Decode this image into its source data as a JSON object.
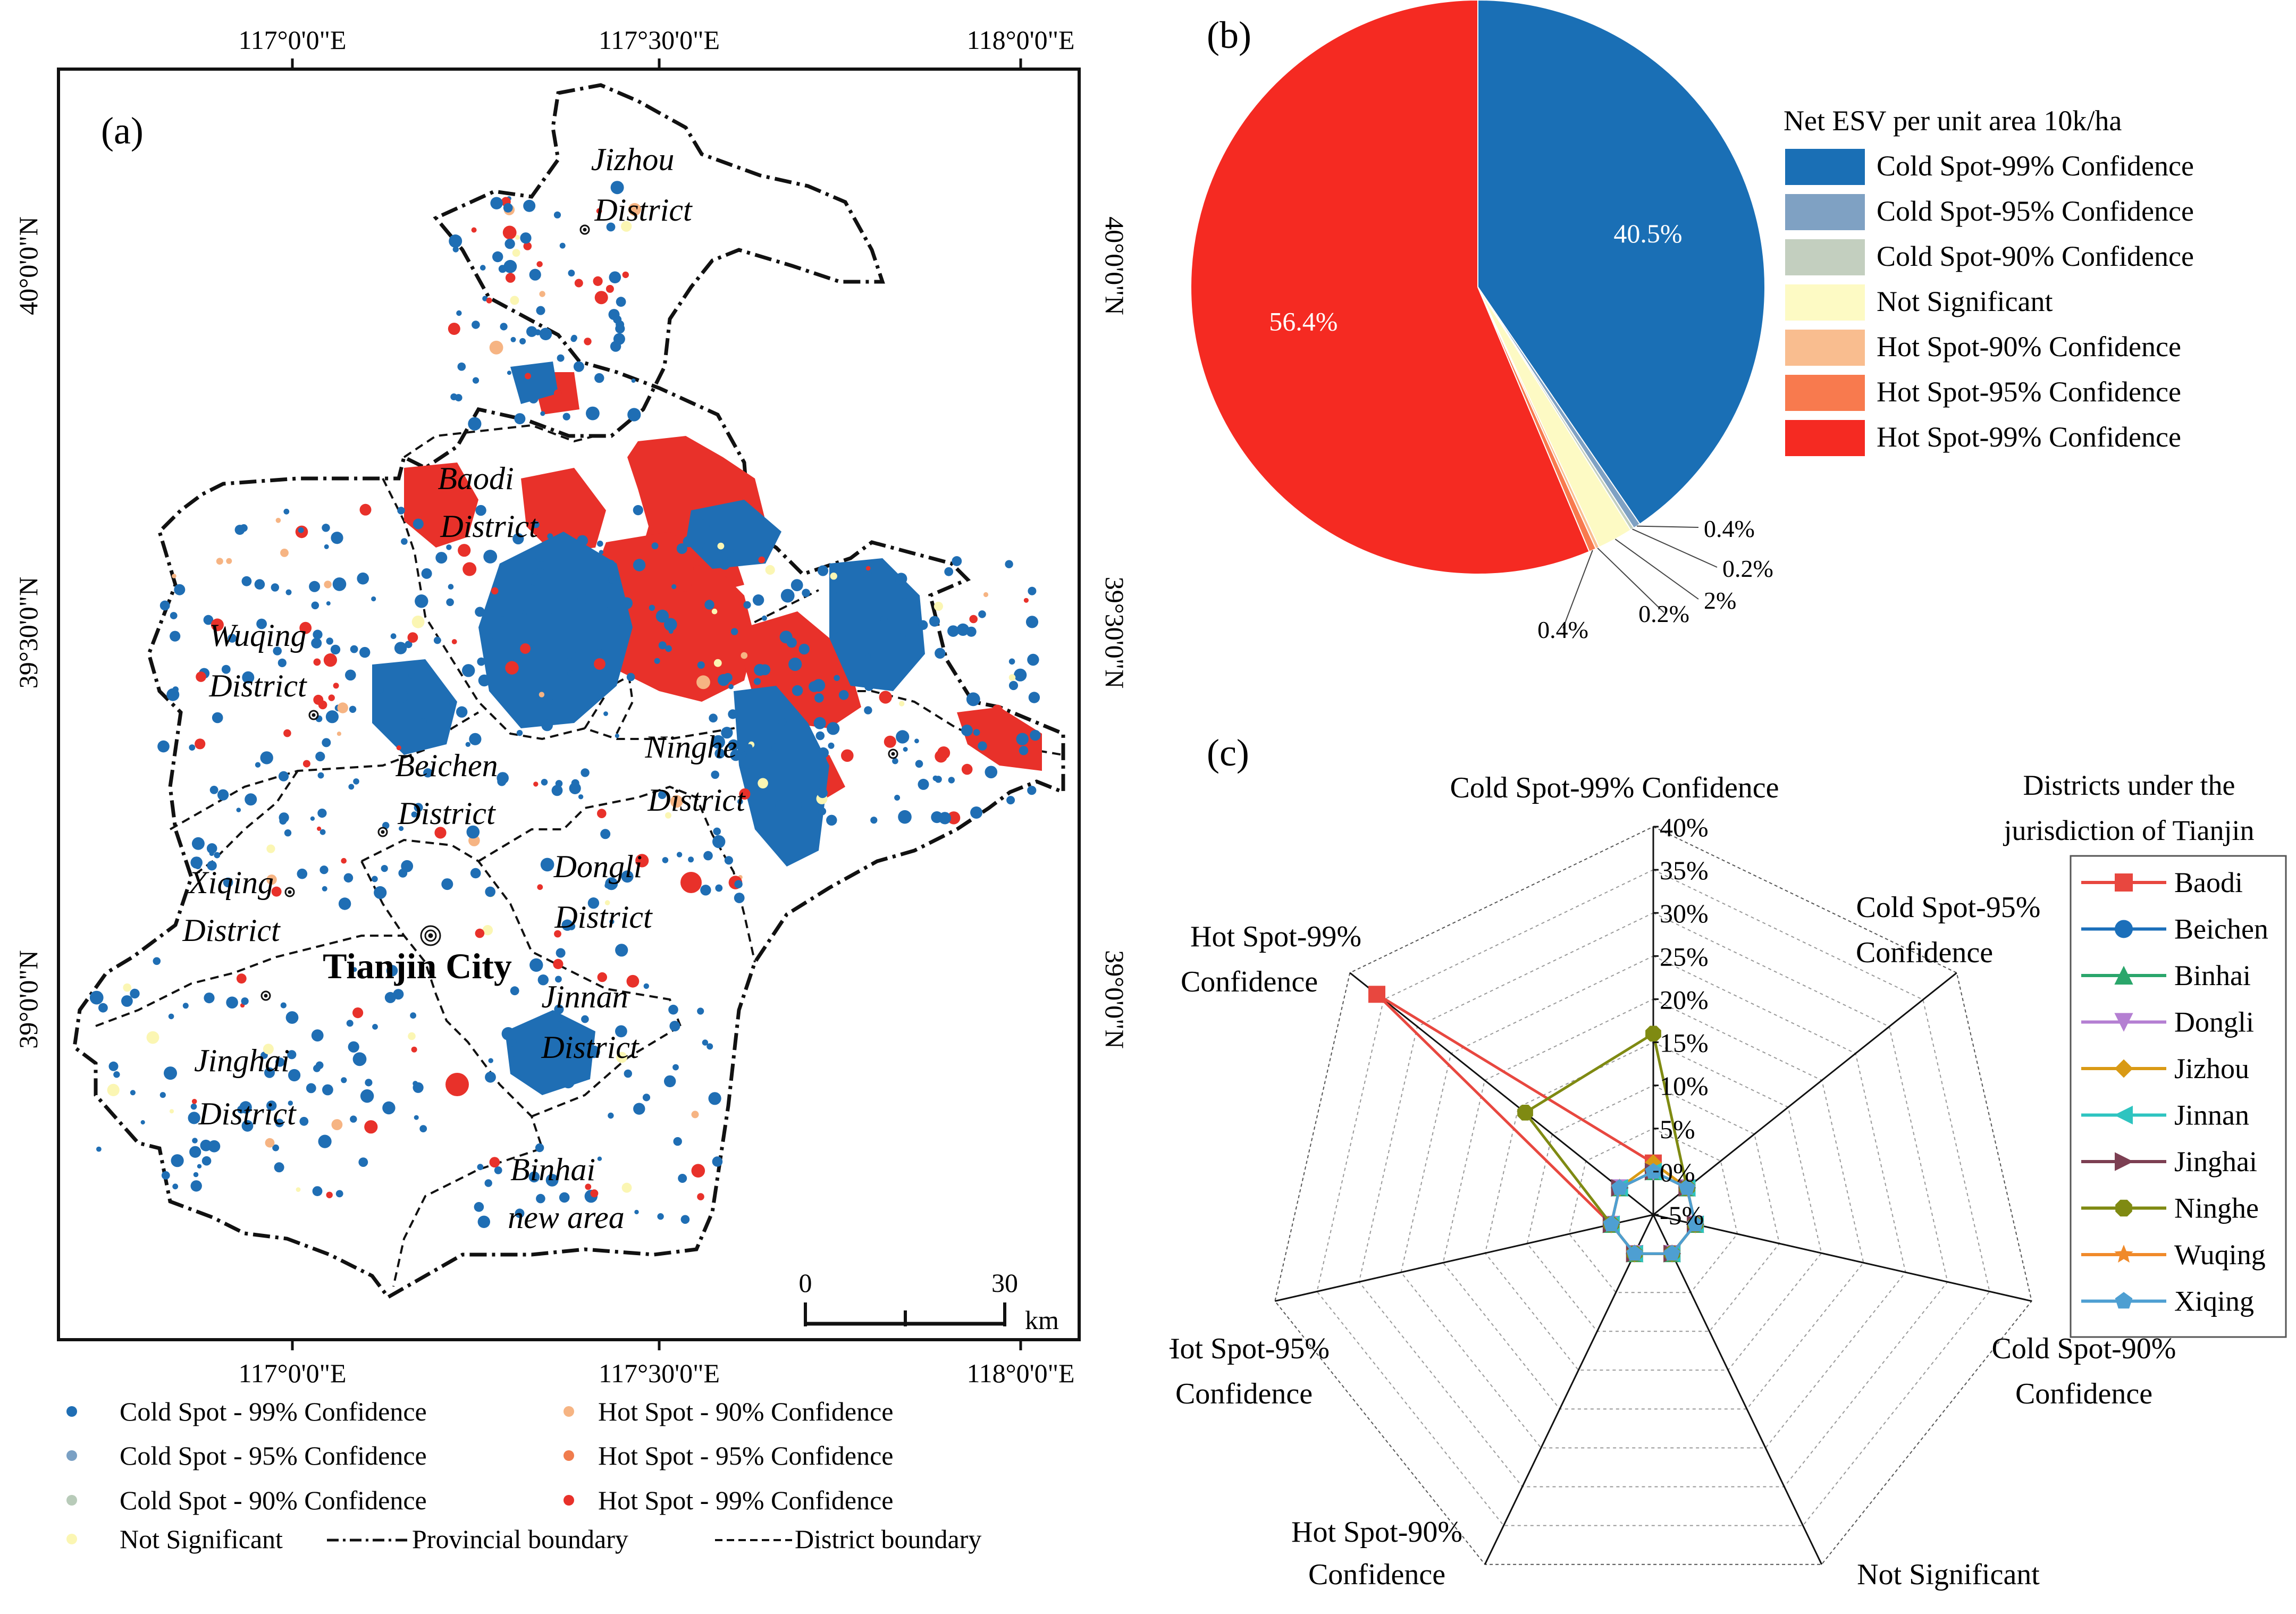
{
  "panel_a": {
    "label": "(a)",
    "top_lon_ticks": [
      "117°0'0\"E",
      "117°30'0\"E",
      "118°0'0\"E"
    ],
    "bottom_lon_ticks": [
      "117°0'0\"E",
      "117°30'0\"E",
      "118°0'0\"E"
    ],
    "lat_ticks": [
      "40°0'0\"N",
      "39°30'0\"N",
      "39°0'0\"N"
    ],
    "districts": [
      {
        "line1": "Jizhou",
        "line2": "District"
      },
      {
        "line1": "Baodi",
        "line2": "District"
      },
      {
        "line1": "Wuqing",
        "line2": "District"
      },
      {
        "line1": "Beichen",
        "line2": "District"
      },
      {
        "line1": "Ninghe",
        "line2": "District"
      },
      {
        "line1": "Xiqing",
        "line2": "District"
      },
      {
        "line1": "Dongli",
        "line2": "District"
      },
      {
        "line1": "Jinnan",
        "line2": "District"
      },
      {
        "line1": "Jinghai",
        "line2": "District"
      },
      {
        "line1": "Binhai",
        "line2": "new area"
      }
    ],
    "city_label": "Tianjin City",
    "scale": {
      "zero": "0",
      "thirty": "30",
      "unit": "km"
    },
    "legend": [
      {
        "label": "Cold Spot - 99% Confidence",
        "color": "#1f6eb4"
      },
      {
        "label": "Hot Spot - 90% Confidence",
        "color": "#f6b483"
      },
      {
        "label": "Cold Spot - 95% Confidence",
        "color": "#7aa0c4"
      },
      {
        "label": "Hot Spot - 95% Confidence",
        "color": "#f07c4d"
      },
      {
        "label": "Cold Spot - 90% Confidence",
        "color": "#b8cbb9"
      },
      {
        "label": "Hot Spot - 99% Confidence",
        "color": "#e8312a"
      },
      {
        "label": "Not Significant",
        "color": "#fbf6b3"
      },
      {
        "label": "Provincial boundary",
        "color": "#111111"
      },
      {
        "label": "District  boundary",
        "color": "#111111"
      }
    ]
  },
  "panel_b": {
    "label": "(b)",
    "legend_title": "Net ESV per unit area  10k/ha",
    "legend": [
      {
        "label": "Cold Spot-99% Confidence",
        "color": "#1a6fb5"
      },
      {
        "label": "Cold Spot-95% Confidence",
        "color": "#7fa1c3"
      },
      {
        "label": "Cold Spot-90% Confidence",
        "color": "#c3cfbf"
      },
      {
        "label": "Not Significant",
        "color": "#fdfac4"
      },
      {
        "label": "Hot Spot-90% Confidence",
        "color": "#f9bd8f"
      },
      {
        "label": "Hot Spot-95% Confidence",
        "color": "#f87a4e"
      },
      {
        "label": "Hot Spot-99% Confidence",
        "color": "#f52a22"
      }
    ]
  },
  "panel_c": {
    "label": "(c)",
    "legend_title_line1": "Districts under the",
    "legend_title_line2": "jurisdiction of Tianjin",
    "axes": [
      {
        "line1": "Cold Spot-99% Confidence",
        "line2": ""
      },
      {
        "line1": "Cold Spot-95%",
        "line2": "Confidence"
      },
      {
        "line1": "Cold Spot-90%",
        "line2": "Confidence"
      },
      {
        "line1": "Not Significant",
        "line2": ""
      },
      {
        "line1": "Hot Spot-90%",
        "line2": "Confidence"
      },
      {
        "line1": "Hot Spot-95%",
        "line2": "Confidence"
      },
      {
        "line1": "Hot Spot-99%",
        "line2": "Confidence"
      }
    ],
    "scale_ticks": [
      "-5%",
      "0%",
      "5%",
      "10%",
      "15%",
      "20%",
      "25%",
      "30%",
      "35%",
      "40%"
    ]
  },
  "chart_data": [
    {
      "type": "pie",
      "title": "Net ESV per unit area  10k/ha",
      "categories": [
        "Cold Spot-99% Confidence",
        "Cold Spot-95% Confidence",
        "Cold Spot-90% Confidence",
        "Not Significant",
        "Hot Spot-90% Confidence",
        "Hot Spot-95% Confidence",
        "Hot Spot-99% Confidence"
      ],
      "values": [
        40.5,
        0.4,
        0.2,
        2,
        0.2,
        0.4,
        56.4
      ],
      "value_labels": [
        "40.5%",
        "0.4%",
        "0.2%",
        "2%",
        "0.2%",
        "0.4%",
        "56.4%"
      ]
    },
    {
      "type": "radar",
      "axes": [
        "Cold Spot-99% Confidence",
        "Cold Spot-95% Confidence",
        "Cold Spot-90% Confidence",
        "Not Significant",
        "Hot Spot-90% Confidence",
        "Hot Spot-95% Confidence",
        "Hot Spot-99% Confidence"
      ],
      "rlim": [
        -5,
        40
      ],
      "rticks": [
        -5,
        0,
        5,
        10,
        15,
        20,
        25,
        30,
        35,
        40
      ],
      "series": [
        {
          "name": "Baodi",
          "color": "#e8473f",
          "marker": "square",
          "values": [
            1,
            0,
            0,
            0,
            0,
            0,
            36
          ]
        },
        {
          "name": "Beichen",
          "color": "#1b6fba",
          "marker": "circle",
          "values": [
            0,
            0,
            0,
            0,
            0,
            0,
            0
          ]
        },
        {
          "name": "Binhai",
          "color": "#2aa66b",
          "marker": "triangle",
          "values": [
            0,
            0,
            0,
            0,
            0,
            0,
            0
          ]
        },
        {
          "name": "Dongli",
          "color": "#b47fd2",
          "marker": "triangle-down",
          "values": [
            0,
            0,
            0,
            0,
            0,
            0,
            0
          ]
        },
        {
          "name": "Jizhou",
          "color": "#d99a15",
          "marker": "diamond",
          "values": [
            1,
            0,
            0,
            0,
            0,
            0,
            0
          ]
        },
        {
          "name": "Jinnan",
          "color": "#2ec4c0",
          "marker": "triangle-left",
          "values": [
            0,
            0,
            0,
            0,
            0,
            0,
            0
          ]
        },
        {
          "name": "Jinghai",
          "color": "#7c3f52",
          "marker": "triangle-right",
          "values": [
            0,
            0,
            0,
            0,
            0,
            0,
            0
          ]
        },
        {
          "name": "Ninghe",
          "color": "#7f8a12",
          "marker": "octagon",
          "values": [
            16,
            0,
            0,
            0,
            0,
            0,
            14
          ]
        },
        {
          "name": "Wuqing",
          "color": "#f08a2a",
          "marker": "star",
          "values": [
            0,
            0,
            0,
            0,
            0,
            0,
            0
          ]
        },
        {
          "name": "Xiqing",
          "color": "#4e9fd2",
          "marker": "pentagon",
          "values": [
            0,
            0,
            0,
            0,
            0,
            0,
            0
          ]
        }
      ]
    }
  ]
}
